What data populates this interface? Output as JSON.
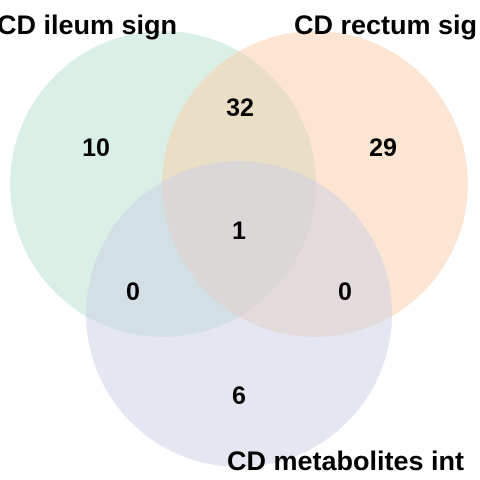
{
  "venn": {
    "sets": [
      {
        "label": "CD ileum sign",
        "color": "#b6e2cf"
      },
      {
        "label": "CD rectum sig",
        "color": "#fbcba8"
      },
      {
        "label": "CD metabolites int",
        "color": "#c9cfe6"
      }
    ],
    "counts": {
      "ileum_only": "10",
      "rectum_only": "29",
      "metabolites_only": "6",
      "ileum_rectum": "32",
      "ileum_metabolites": "0",
      "rectum_metabolites": "0",
      "all_three": "1"
    }
  }
}
